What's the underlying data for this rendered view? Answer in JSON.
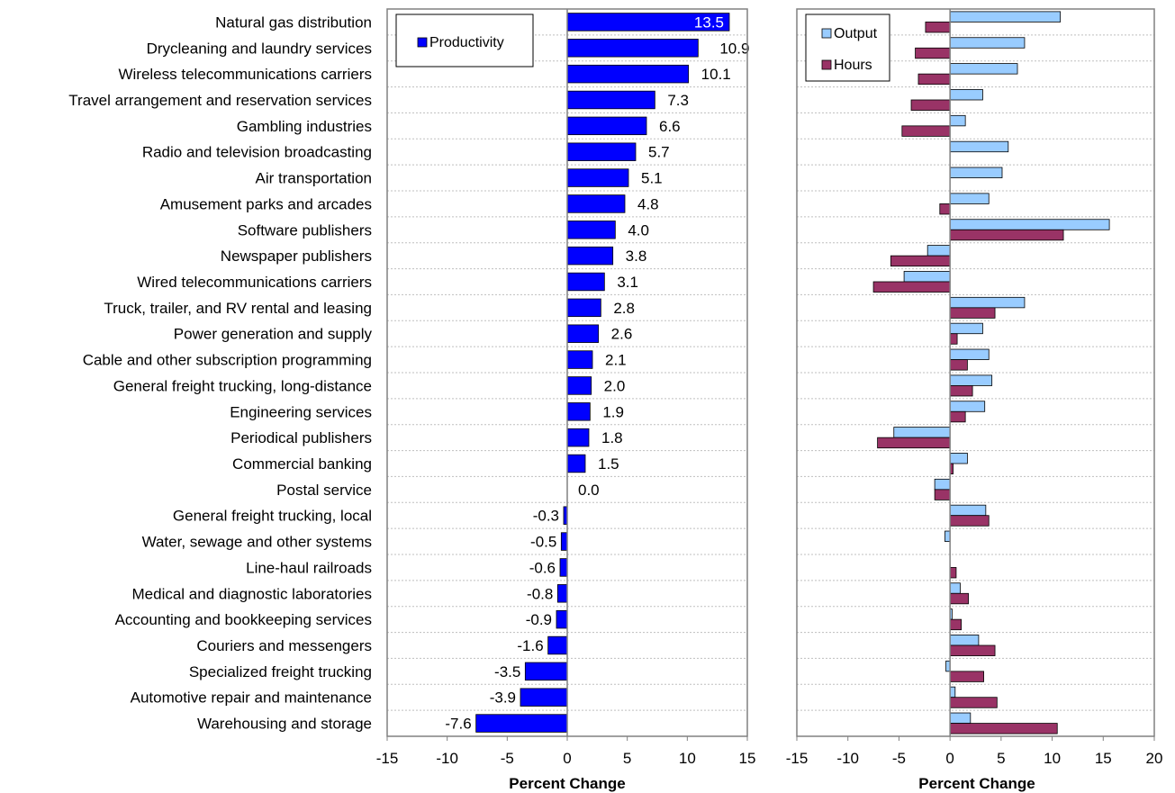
{
  "colors": {
    "productivity": "#0000ff",
    "output": "#99ccff",
    "hours": "#993366",
    "grid": "#bfbfbf",
    "frame": "#808080"
  },
  "chart_data": [
    {
      "type": "bar",
      "orientation": "horizontal",
      "categories": [
        "Natural gas distribution",
        "Drycleaning and laundry services",
        "Wireless telecommunications carriers",
        "Travel arrangement and reservation services",
        "Gambling industries",
        "Radio and television broadcasting",
        "Air transportation",
        "Amusement parks and arcades",
        "Software publishers",
        "Newspaper publishers",
        "Wired telecommunications carriers",
        "Truck, trailer, and RV rental and leasing",
        "Power generation and supply",
        "Cable and other subscription programming",
        "General freight trucking, long-distance",
        "Engineering services",
        "Periodical publishers",
        "Commercial banking",
        "Postal service",
        "General freight trucking, local",
        "Water, sewage and other systems",
        "Line-haul railroads",
        "Medical and diagnostic laboratories",
        "Accounting and bookkeeping services",
        "Couriers and messengers",
        "Specialized freight trucking",
        "Automotive repair and maintenance",
        "Warehousing and storage"
      ],
      "series": [
        {
          "name": "Productivity",
          "values": [
            13.5,
            10.9,
            10.1,
            7.3,
            6.6,
            5.7,
            5.1,
            4.8,
            4.0,
            3.8,
            3.1,
            2.8,
            2.6,
            2.1,
            2.0,
            1.9,
            1.8,
            1.5,
            0.0,
            -0.3,
            -0.5,
            -0.6,
            -0.8,
            -0.9,
            -1.6,
            -3.5,
            -3.9,
            -7.6
          ],
          "labels": [
            "13.5",
            "10.9",
            "10.1",
            "7.3",
            "6.6",
            "5.7",
            "5.1",
            "4.8",
            "4.0",
            "3.8",
            "3.1",
            "2.8",
            "2.6",
            "2.1",
            "2.0",
            "1.9",
            "1.8",
            "1.5",
            "0.0",
            "-0.3",
            "-0.5",
            "-0.6",
            "-0.8",
            "-0.9",
            "-1.6",
            "-3.5",
            "-3.9",
            "-7.6"
          ]
        }
      ],
      "xlabel": "Percent Change",
      "xlim": [
        -15,
        15
      ],
      "xticks": [
        "-15",
        "-10",
        "-5",
        "0",
        "5",
        "10",
        "15"
      ],
      "grid": "horizontal",
      "legend": "top-left"
    },
    {
      "type": "bar",
      "orientation": "horizontal",
      "series": [
        {
          "name": "Output",
          "values": [
            10.8,
            7.3,
            6.6,
            3.2,
            1.5,
            5.7,
            5.1,
            3.8,
            15.6,
            -2.2,
            -4.5,
            7.3,
            3.2,
            3.8,
            4.1,
            3.4,
            -5.5,
            1.7,
            -1.5,
            3.5,
            -0.5,
            0.0,
            1.0,
            0.2,
            2.8,
            -0.4,
            0.5,
            2.0
          ]
        },
        {
          "name": "Hours",
          "values": [
            -2.4,
            -3.4,
            -3.1,
            -3.8,
            -4.7,
            0.0,
            0.0,
            -1.0,
            11.1,
            -5.8,
            -7.5,
            4.4,
            0.7,
            1.7,
            2.2,
            1.5,
            -7.1,
            0.3,
            -1.5,
            3.8,
            0.0,
            0.6,
            1.8,
            1.1,
            4.4,
            3.3,
            4.6,
            10.5
          ]
        }
      ],
      "xlabel": "Percent Change",
      "xlim": [
        -15,
        20
      ],
      "xticks": [
        "-15",
        "-10",
        "-5",
        "0",
        "5",
        "10",
        "15",
        "20"
      ],
      "grid": "horizontal",
      "legend": "top-left"
    }
  ]
}
